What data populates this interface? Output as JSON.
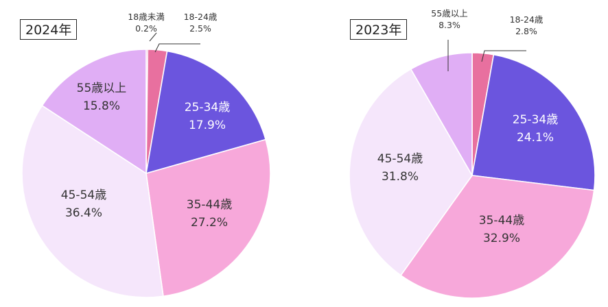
{
  "chart_data": [
    {
      "type": "pie",
      "title": "2024年",
      "start_angle": "12 o'clock, clockwise",
      "slices": [
        {
          "label": "18歳未満",
          "value": 0.2,
          "value_text": "0.2%",
          "color": "#e0559c",
          "label_style": "outside"
        },
        {
          "label": "18-24歳",
          "value": 2.5,
          "value_text": "2.5%",
          "color": "#e8709f",
          "label_style": "outside"
        },
        {
          "label": "25-34歳",
          "value": 17.9,
          "value_text": "17.9%",
          "color": "#6b55de",
          "label_style": "inside-light"
        },
        {
          "label": "35-44歳",
          "value": 27.2,
          "value_text": "27.2%",
          "color": "#f7a8da",
          "label_style": "inside-dark"
        },
        {
          "label": "45-54歳",
          "value": 36.4,
          "value_text": "36.4%",
          "color": "#f5e6fb",
          "label_style": "inside-dark"
        },
        {
          "label": "55歳以上",
          "value": 15.8,
          "value_text": "15.8%",
          "color": "#e0aef5",
          "label_style": "inside-dark"
        }
      ]
    },
    {
      "type": "pie",
      "title": "2023年",
      "start_angle": "12 o'clock, clockwise",
      "slices": [
        {
          "label": "18-24歳",
          "value": 2.8,
          "value_text": "2.8%",
          "color": "#e8709f",
          "label_style": "outside"
        },
        {
          "label": "25-34歳",
          "value": 24.1,
          "value_text": "24.1%",
          "color": "#6b55de",
          "label_style": "inside-light"
        },
        {
          "label": "35-44歳",
          "value": 32.9,
          "value_text": "32.9%",
          "color": "#f7a8da",
          "label_style": "inside-dark"
        },
        {
          "label": "45-54歳",
          "value": 31.8,
          "value_text": "31.8%",
          "color": "#f5e6fb",
          "label_style": "inside-dark"
        },
        {
          "label": "55歳以上",
          "value": 8.3,
          "value_text": "8.3%",
          "color": "#e0aef5",
          "label_style": "outside"
        }
      ]
    }
  ],
  "colors": {
    "text_dark": "#333333",
    "text_light": "#ffffff",
    "slice_border": "#ffffff",
    "leader_line": "#333333"
  }
}
